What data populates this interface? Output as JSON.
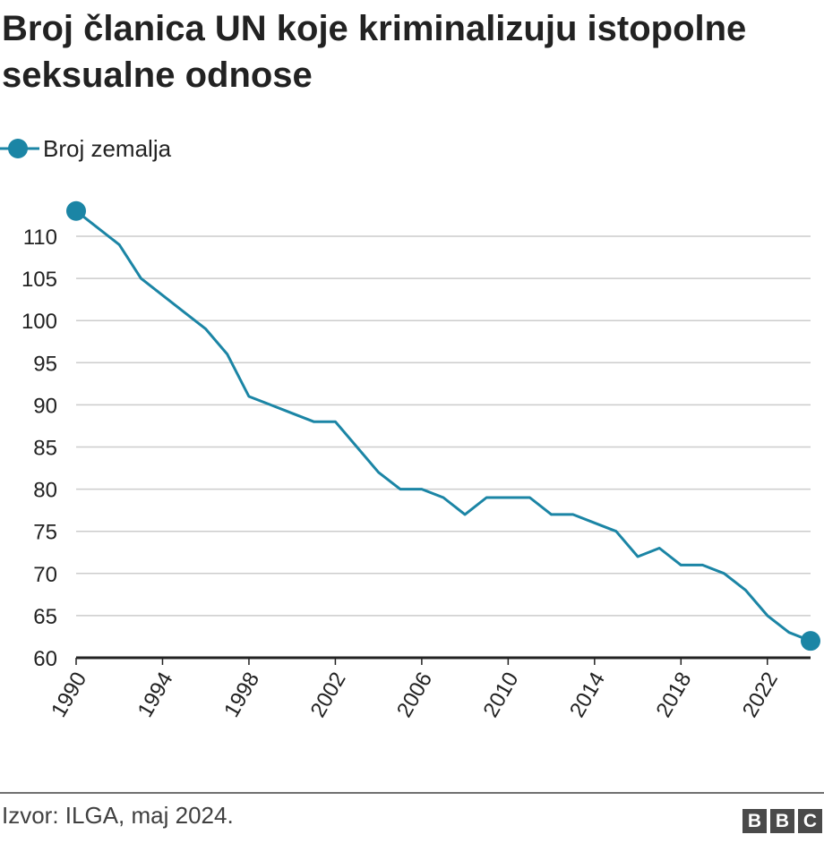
{
  "chart_data": {
    "type": "line",
    "title": "Broj članica UN koje kriminalizuju istopolne seksualne odnose",
    "xlabel": "",
    "ylabel": "",
    "ylim": [
      60,
      113
    ],
    "xlim": [
      1990,
      2024
    ],
    "yticks": [
      60,
      65,
      70,
      75,
      80,
      85,
      90,
      95,
      100,
      105,
      110
    ],
    "xticks": [
      "1990",
      "1994",
      "1998",
      "2002",
      "2006",
      "2010",
      "2014",
      "2018",
      "2022"
    ],
    "grid": true,
    "legend_position": "top-left",
    "series": [
      {
        "name": "Broj zemalja",
        "color": "#1b85a5",
        "x": [
          1990,
          1991,
          1992,
          1993,
          1994,
          1995,
          1996,
          1997,
          1998,
          1999,
          2000,
          2001,
          2002,
          2003,
          2004,
          2005,
          2006,
          2007,
          2008,
          2009,
          2010,
          2011,
          2012,
          2013,
          2014,
          2015,
          2016,
          2017,
          2018,
          2019,
          2020,
          2021,
          2022,
          2023,
          2024
        ],
        "values": [
          113,
          111,
          109,
          105,
          103,
          101,
          99,
          96,
          91,
          90,
          89,
          88,
          88,
          85,
          82,
          80,
          80,
          79,
          77,
          79,
          79,
          79,
          77,
          77,
          76,
          75,
          72,
          73,
          71,
          71,
          70,
          68,
          65,
          63,
          62
        ]
      }
    ]
  },
  "source": "Izvor: ILGA, maj 2024.",
  "logo": [
    "B",
    "B",
    "C"
  ]
}
